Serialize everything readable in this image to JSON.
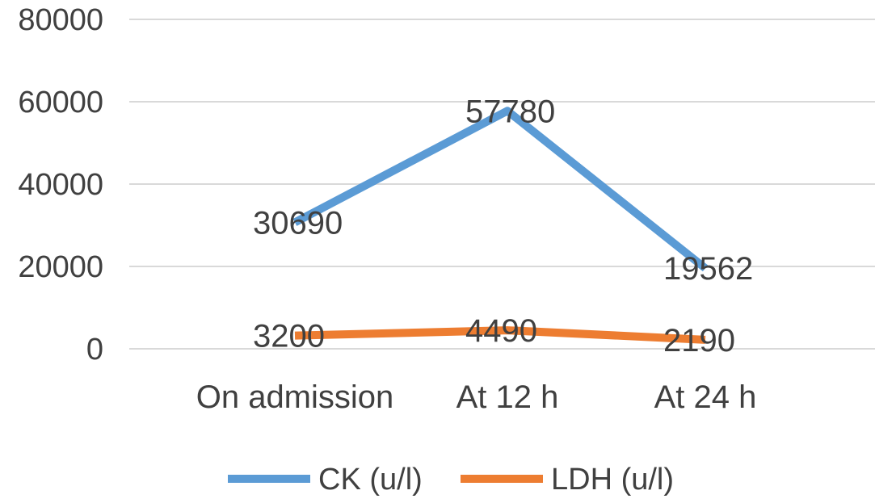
{
  "chart_data": {
    "type": "line",
    "categories": [
      "On admission",
      "At 12 h",
      "At 24 h"
    ],
    "series": [
      {
        "name": "CK (u/l)",
        "values": [
          30690,
          57780,
          19562
        ],
        "color": "#5B9BD5"
      },
      {
        "name": "LDH (u/l)",
        "values": [
          3200,
          4490,
          2190
        ],
        "color": "#ED7D31"
      }
    ],
    "ylim": [
      0,
      80000
    ],
    "yticks": [
      0,
      20000,
      40000,
      60000,
      80000
    ],
    "ytick_labels": [
      "0",
      "20000",
      "40000",
      "60000",
      "80000"
    ],
    "grid": true,
    "gridline_color": "#D9D9D9",
    "text_color": "#404040",
    "legend_position": "bottom",
    "data_labels": true
  }
}
